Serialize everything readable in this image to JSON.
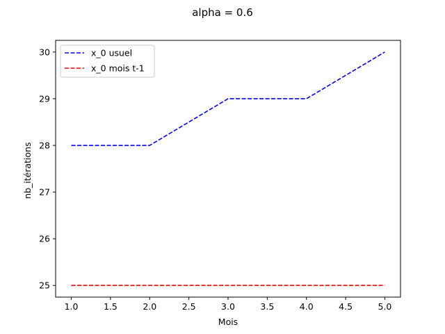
{
  "chart_data": {
    "type": "line",
    "title": "alpha = 0.6",
    "xlabel": "Mois",
    "ylabel": "nb_itérations",
    "x": [
      1,
      2,
      3,
      4,
      5
    ],
    "xlim": [
      0.8,
      5.2
    ],
    "ylim": [
      24.75,
      30.25
    ],
    "xticks": [
      1.0,
      1.5,
      2.0,
      2.5,
      3.0,
      3.5,
      4.0,
      4.5,
      5.0
    ],
    "xtick_labels": [
      "1.0",
      "1.5",
      "2.0",
      "2.5",
      "3.0",
      "3.5",
      "4.0",
      "4.5",
      "5.0"
    ],
    "yticks": [
      25,
      26,
      27,
      28,
      29,
      30
    ],
    "ytick_labels": [
      "25",
      "26",
      "27",
      "28",
      "29",
      "30"
    ],
    "grid": false,
    "legend_position": "top-left",
    "series": [
      {
        "name": "x_0 usuel",
        "values": [
          28,
          28,
          29,
          29,
          30
        ],
        "color": "#0000ff",
        "style": "dashed"
      },
      {
        "name": "x_0 mois t-1",
        "values": [
          25,
          25,
          25,
          25,
          25
        ],
        "color": "#ff0000",
        "style": "dashed"
      }
    ]
  }
}
